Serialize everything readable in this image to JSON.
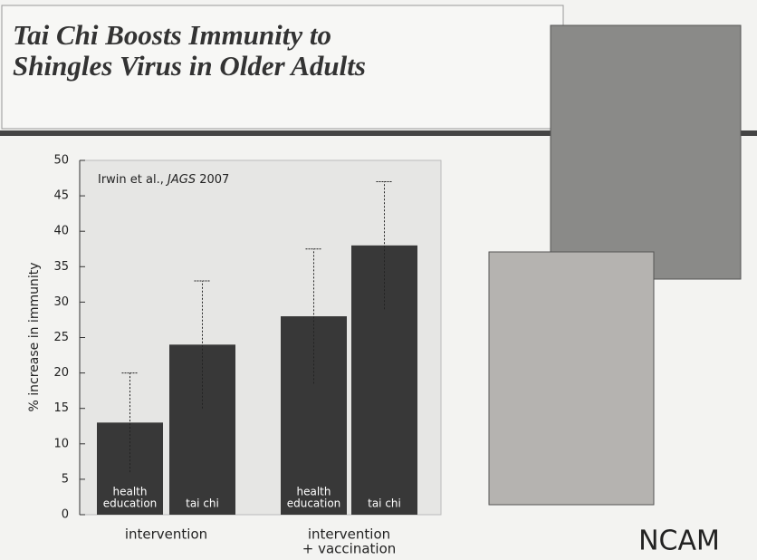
{
  "title": "Tai Chi Boosts Immunity to Shingles Virus in Older Adults",
  "logo": "NCAM",
  "chart_data": {
    "type": "bar",
    "y_label": "% increase in immunity",
    "annotation": {
      "authors": "Irwin et al.,",
      "journal": "JAGS",
      "year": "2007"
    },
    "categories": [
      [
        "health",
        "education"
      ],
      [
        "tai chi"
      ],
      [
        "health",
        "education"
      ],
      [
        "tai chi"
      ]
    ],
    "groups": [
      [
        "intervention"
      ],
      [
        "intervention",
        "+ vaccination"
      ]
    ],
    "values": [
      13,
      24,
      28,
      38
    ],
    "errors": [
      7,
      9,
      9.5,
      9
    ],
    "color": "#383838",
    "ylim": [
      0,
      50
    ],
    "yticks": [
      0,
      5,
      10,
      15,
      20,
      25,
      30,
      35,
      40,
      45,
      50
    ],
    "grid": false
  }
}
